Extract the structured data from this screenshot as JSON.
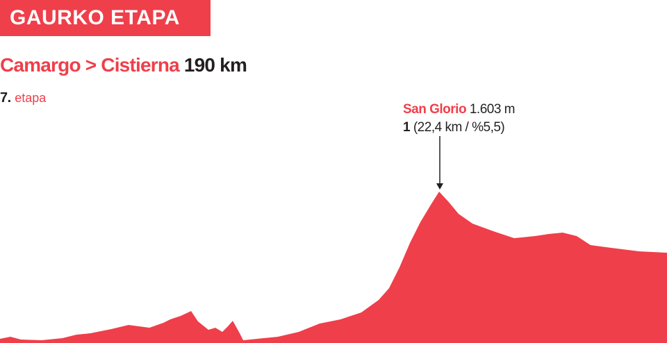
{
  "header": {
    "badge": "GAURKO ETAPA",
    "route": "Camargo > Cistierna",
    "distance": "190 km",
    "stage_number": "7.",
    "stage_label": "etapa"
  },
  "summit": {
    "name": "San Glorio",
    "altitude": "1.603 m",
    "category": "1",
    "climb": "(22,4 km / %5,5)"
  }
}
